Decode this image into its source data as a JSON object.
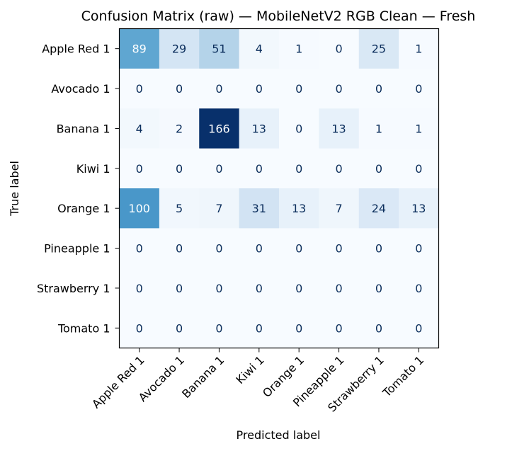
{
  "chart_data": {
    "type": "heatmap",
    "title": "Confusion Matrix (raw) — MobileNetV2 RGB Clean — Fresh",
    "xlabel": "Predicted label",
    "ylabel": "True label",
    "x_categories": [
      "Apple Red 1",
      "Avocado 1",
      "Banana 1",
      "Kiwi 1",
      "Orange 1",
      "Pineapple 1",
      "Strawberry 1",
      "Tomato 1"
    ],
    "y_categories": [
      "Apple Red 1",
      "Avocado 1",
      "Banana 1",
      "Kiwi 1",
      "Orange 1",
      "Pineapple 1",
      "Strawberry 1",
      "Tomato 1"
    ],
    "values": [
      [
        89,
        29,
        51,
        4,
        1,
        0,
        25,
        1
      ],
      [
        0,
        0,
        0,
        0,
        0,
        0,
        0,
        0
      ],
      [
        4,
        2,
        166,
        13,
        0,
        13,
        1,
        1
      ],
      [
        0,
        0,
        0,
        0,
        0,
        0,
        0,
        0
      ],
      [
        100,
        5,
        7,
        31,
        13,
        7,
        24,
        13
      ],
      [
        0,
        0,
        0,
        0,
        0,
        0,
        0,
        0
      ],
      [
        0,
        0,
        0,
        0,
        0,
        0,
        0,
        0
      ],
      [
        0,
        0,
        0,
        0,
        0,
        0,
        0,
        0
      ]
    ],
    "colormap": "Blues",
    "vmin": 0,
    "vmax": 166,
    "colorbar": false
  }
}
